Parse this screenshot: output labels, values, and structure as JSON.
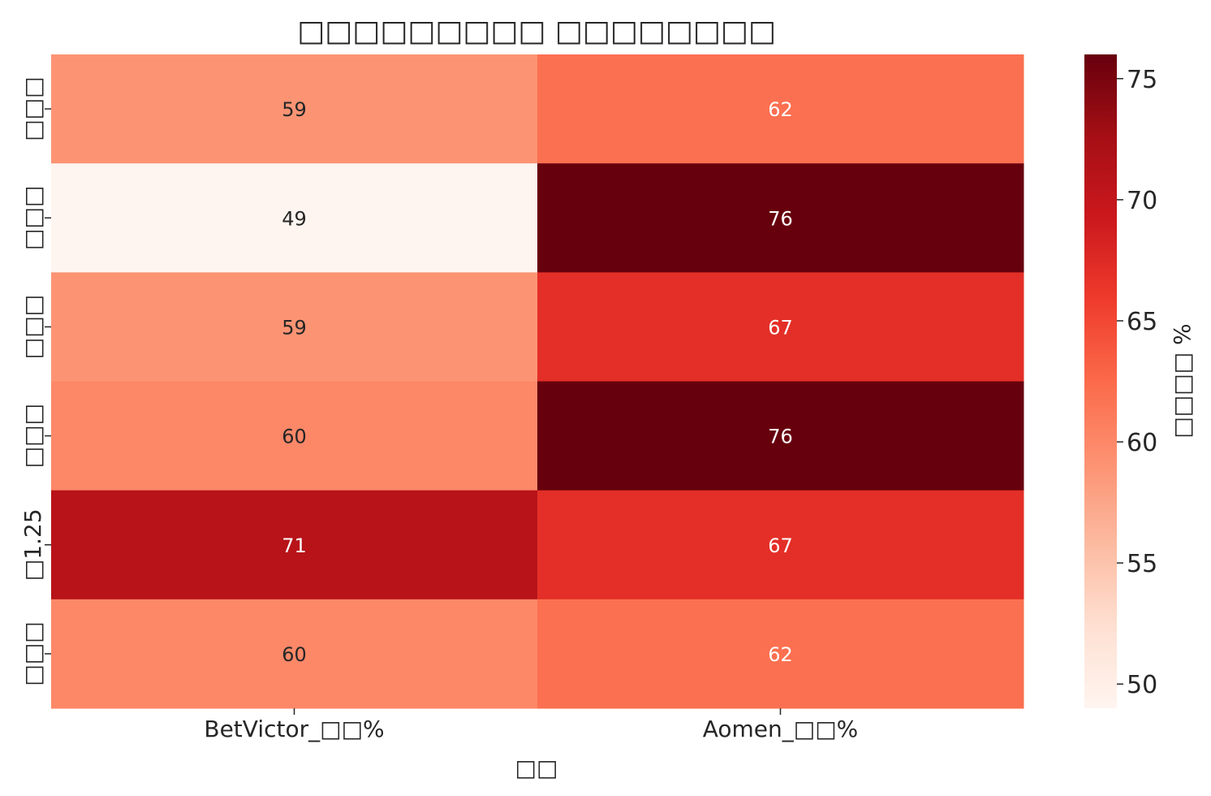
{
  "chart_data": {
    "type": "heatmap",
    "title": "□□□□□□□□□ □□□□□□□□",
    "xlabel": "□□",
    "ylabel": "",
    "x_categories": [
      "BetVictor_□□%",
      "Aomen_□□%"
    ],
    "y_categories": [
      "□□□",
      "□□□",
      "□□□",
      "□□□",
      "□1.25",
      "□□□"
    ],
    "values": [
      [
        59,
        62
      ],
      [
        49,
        76
      ],
      [
        59,
        67
      ],
      [
        60,
        76
      ],
      [
        71,
        67
      ],
      [
        60,
        62
      ]
    ],
    "colorbar": {
      "label": "□□□□ %",
      "range": [
        49,
        76
      ],
      "ticks": [
        50,
        55,
        60,
        65,
        70,
        75
      ]
    },
    "colormap": "Reds",
    "grid": false
  }
}
